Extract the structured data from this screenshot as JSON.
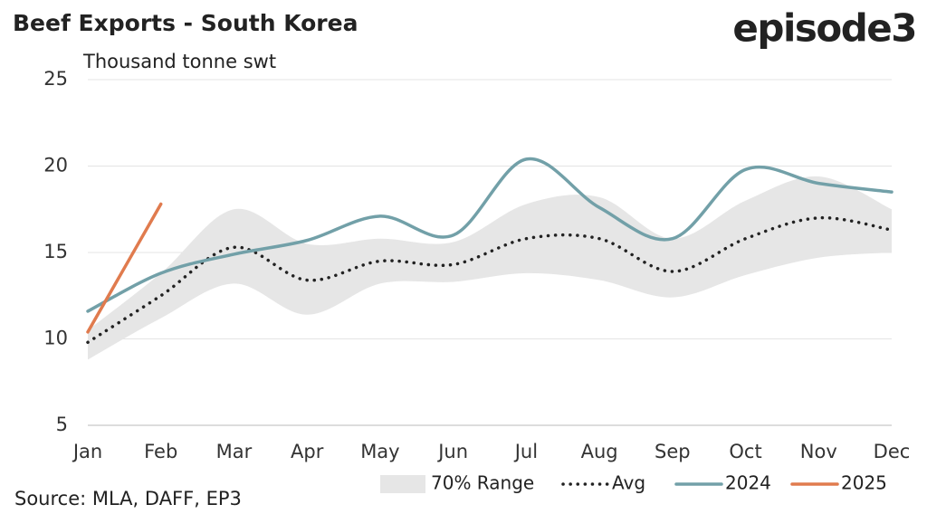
{
  "chart_data": {
    "type": "line",
    "title": "Beef Exports - South Korea",
    "subtitle": "Thousand tonne swt",
    "logo": "episode3",
    "source": "Source: MLA, DAFF, EP3",
    "categories": [
      "Jan",
      "Feb",
      "Mar",
      "Apr",
      "May",
      "Jun",
      "Jul",
      "Aug",
      "Sep",
      "Oct",
      "Nov",
      "Dec"
    ],
    "ylim": [
      5,
      25
    ],
    "yticks": [
      5,
      10,
      15,
      20,
      25
    ],
    "grid": true,
    "series": [
      {
        "name": "70% Range",
        "kind": "band",
        "color": "#e6e6e6",
        "high": [
          10.5,
          13.8,
          17.5,
          15.5,
          15.8,
          15.6,
          17.8,
          18.2,
          15.8,
          18.0,
          19.4,
          17.5
        ],
        "low": [
          8.8,
          11.2,
          13.2,
          11.4,
          13.2,
          13.3,
          13.8,
          13.4,
          12.4,
          13.7,
          14.7,
          15.0
        ]
      },
      {
        "name": "Avg",
        "kind": "dotted",
        "color": "#222222",
        "values": [
          9.8,
          12.5,
          15.3,
          13.4,
          14.5,
          14.3,
          15.8,
          15.8,
          13.9,
          15.8,
          17.0,
          16.3
        ]
      },
      {
        "name": "2024",
        "kind": "line",
        "color": "#72a0a8",
        "values": [
          11.6,
          13.8,
          14.9,
          15.7,
          17.1,
          16.0,
          20.4,
          17.6,
          15.8,
          19.8,
          19.0,
          18.5
        ]
      },
      {
        "name": "2025",
        "kind": "line",
        "color": "#e07b4e",
        "values": [
          10.4,
          17.8,
          null,
          null,
          null,
          null,
          null,
          null,
          null,
          null,
          null,
          null
        ]
      }
    ]
  }
}
